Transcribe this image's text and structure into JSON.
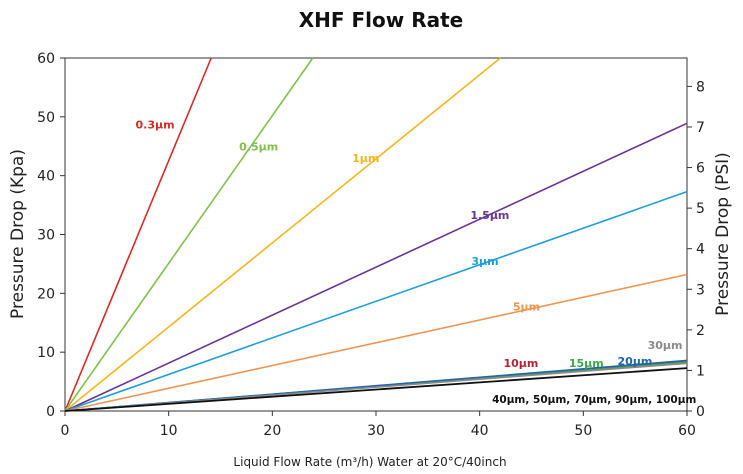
{
  "chart_data": {
    "type": "line",
    "title": "XHF Flow Rate",
    "xlabel": "Liquid Flow Rate (m³/h) Water at 20°C/40inch",
    "ylabel": "Pressure Drop (Kpa)",
    "y2label": "Pressure Drop (PSI)",
    "xlim": [
      0,
      60
    ],
    "ylim": [
      0,
      60
    ],
    "y2lim": [
      0,
      8.7
    ],
    "xticks": [
      "0",
      "10",
      "20",
      "30",
      "40",
      "50",
      "60"
    ],
    "yticks": [
      "0",
      "10",
      "20",
      "30",
      "40",
      "50",
      "60"
    ],
    "y2ticks": [
      "0",
      "1",
      "2",
      "3",
      "4",
      "5",
      "6",
      "7",
      "8"
    ],
    "grid": false,
    "legend": "none",
    "series": [
      {
        "name": "0.3μm",
        "color": "#d62b27",
        "x": [
          0,
          14.1
        ],
        "y": [
          0,
          60
        ]
      },
      {
        "name": "0.5μm",
        "color": "#7fc14a",
        "x": [
          0,
          23.9
        ],
        "y": [
          0,
          60
        ]
      },
      {
        "name": "1μm",
        "color": "#f2b71c",
        "x": [
          0,
          42.0
        ],
        "y": [
          0,
          60
        ]
      },
      {
        "name": "1.5μm",
        "color": "#6a3494",
        "x": [
          0,
          60
        ],
        "y": [
          0,
          48.9
        ]
      },
      {
        "name": "3μm",
        "color": "#1f9fd8",
        "x": [
          0,
          60
        ],
        "y": [
          0,
          37.3
        ]
      },
      {
        "name": "5μm",
        "color": "#ee9650",
        "x": [
          0,
          60
        ],
        "y": [
          0,
          23.2
        ]
      },
      {
        "name": "10μm",
        "color": "#b0243a",
        "x": [
          0,
          60
        ],
        "y": [
          0,
          8.5
        ]
      },
      {
        "name": "15μm",
        "color": "#3ea84a",
        "x": [
          0,
          60
        ],
        "y": [
          0,
          8.3
        ]
      },
      {
        "name": "20μm",
        "color": "#2266aa",
        "x": [
          0,
          60
        ],
        "y": [
          0,
          8.6
        ]
      },
      {
        "name": "30μm",
        "color": "#8a8a8a",
        "x": [
          0,
          60
        ],
        "y": [
          0,
          8.1
        ]
      },
      {
        "name": "40μm, 50μm, 70μm, 90μm, 100μm",
        "color": "#111111",
        "x": [
          0,
          60
        ],
        "y": [
          0,
          7.3
        ]
      }
    ]
  }
}
